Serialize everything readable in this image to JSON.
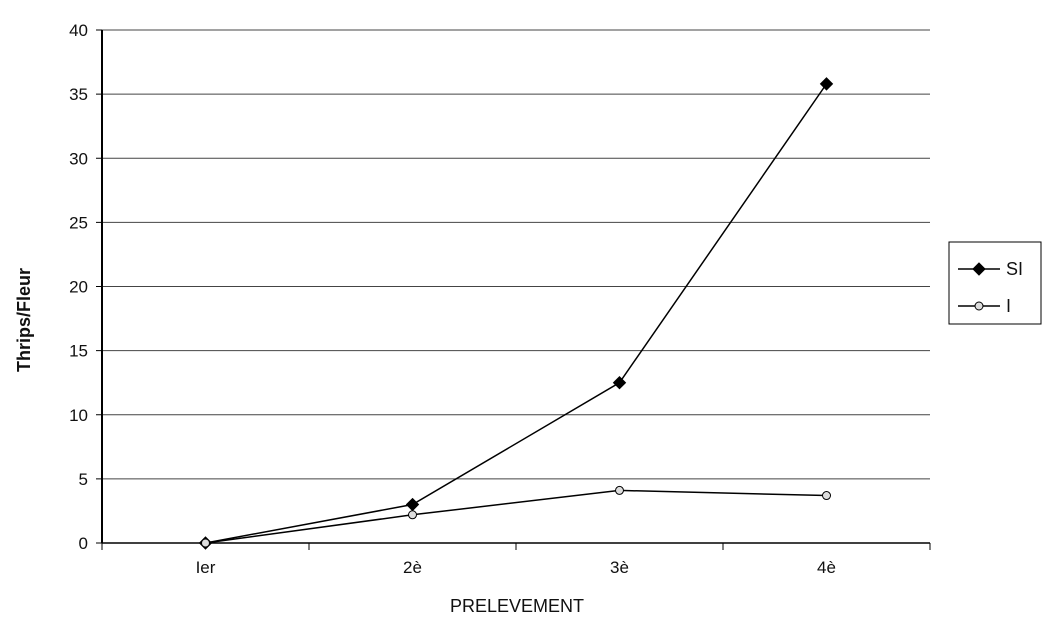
{
  "chart_data": {
    "type": "line",
    "title": "",
    "xlabel": "PRELEVEMENT",
    "ylabel": "Thrips/Fleur",
    "categories": [
      "Ier",
      "2è",
      "3è",
      "4è"
    ],
    "ylim": [
      0,
      40
    ],
    "yticks": [
      0,
      5,
      10,
      15,
      20,
      25,
      30,
      35,
      40
    ],
    "grid": true,
    "legend_position": "right",
    "series": [
      {
        "name": "SI",
        "values": [
          0,
          3,
          12.5,
          35.8
        ],
        "color": "#000000",
        "marker": "diamond"
      },
      {
        "name": "I",
        "values": [
          0,
          2.2,
          4.1,
          3.7
        ],
        "color": "#000000",
        "marker": "circle"
      }
    ]
  }
}
